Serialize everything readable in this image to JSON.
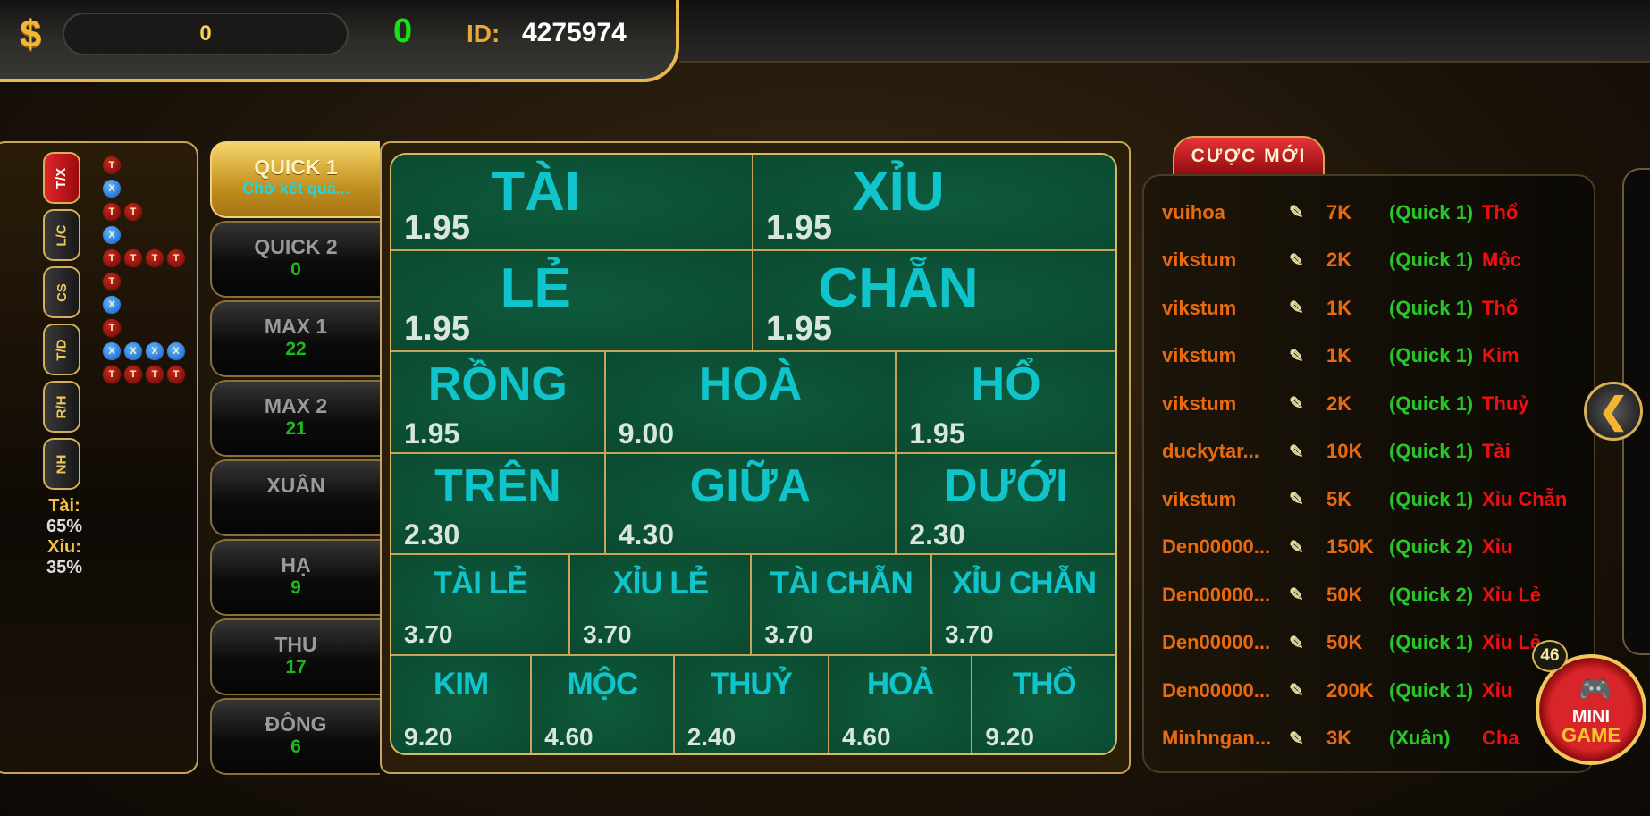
{
  "header": {
    "currency_icon": "dollar-icon",
    "balance": "0",
    "counter": "0",
    "id_label": "ID:",
    "id_value": "4275974"
  },
  "history": {
    "categories": [
      {
        "label": "T/X",
        "active": true
      },
      {
        "label": "L/C"
      },
      {
        "label": "CS"
      },
      {
        "label": "T/D"
      },
      {
        "label": "R/H"
      },
      {
        "label": "NH"
      }
    ],
    "rows": [
      [
        "T"
      ],
      [
        "X"
      ],
      [
        "T",
        "T"
      ],
      [
        "X"
      ],
      [
        "T",
        "T",
        "T",
        "T"
      ],
      [
        "T"
      ],
      [
        "X"
      ],
      [
        "T"
      ],
      [
        "X",
        "X",
        "X",
        "X"
      ],
      [
        "T",
        "T",
        "T",
        "T"
      ]
    ],
    "tai_label": "Tài:",
    "tai_pct": "65%",
    "xiu_label": "Xỉu:",
    "xiu_pct": "35%"
  },
  "tabs": [
    {
      "label": "QUICK 1",
      "value": "Chờ kết quả...",
      "active": true
    },
    {
      "label": "QUICK 2",
      "value": "0"
    },
    {
      "label": "MAX 1",
      "value": "22"
    },
    {
      "label": "MAX 2",
      "value": "21"
    },
    {
      "label": "XUÂN",
      "value": ""
    },
    {
      "label": "HẠ",
      "value": "9"
    },
    {
      "label": "THU",
      "value": "17"
    },
    {
      "label": "ĐÔNG",
      "value": "6"
    }
  ],
  "board": [
    [
      {
        "label": "TÀI",
        "odds": "1.95"
      },
      {
        "label": "XỈU",
        "odds": "1.95"
      }
    ],
    [
      {
        "label": "LẺ",
        "odds": "1.95"
      },
      {
        "label": "CHẴN",
        "odds": "1.95"
      }
    ],
    [
      {
        "label": "RỒNG",
        "odds": "1.95"
      },
      {
        "label": "HOÀ",
        "odds": "9.00"
      },
      {
        "label": "HỔ",
        "odds": "1.95"
      }
    ],
    [
      {
        "label": "TRÊN",
        "odds": "2.30"
      },
      {
        "label": "GIỮA",
        "odds": "4.30"
      },
      {
        "label": "DƯỚI",
        "odds": "2.30"
      }
    ],
    [
      {
        "label": "TÀI LẺ",
        "odds": "3.70"
      },
      {
        "label": "XỈU LẺ",
        "odds": "3.70"
      },
      {
        "label": "TÀI CHẴN",
        "odds": "3.70"
      },
      {
        "label": "XỈU CHẴN",
        "odds": "3.70"
      }
    ],
    [
      {
        "label": "KIM",
        "odds": "9.20"
      },
      {
        "label": "MỘC",
        "odds": "4.60"
      },
      {
        "label": "THUỶ",
        "odds": "2.40"
      },
      {
        "label": "HOẢ",
        "odds": "4.60"
      },
      {
        "label": "THỔ",
        "odds": "9.20"
      }
    ]
  ],
  "feed": {
    "title": "CƯỢC MỚI",
    "rows": [
      {
        "user": "vuihoa",
        "amount": "7K",
        "room": "(Quick 1)",
        "bet": "Thổ"
      },
      {
        "user": "vikstum",
        "amount": "2K",
        "room": "(Quick 1)",
        "bet": "Mộc"
      },
      {
        "user": "vikstum",
        "amount": "1K",
        "room": "(Quick 1)",
        "bet": "Thổ"
      },
      {
        "user": "vikstum",
        "amount": "1K",
        "room": "(Quick 1)",
        "bet": "Kim"
      },
      {
        "user": "vikstum",
        "amount": "2K",
        "room": "(Quick 1)",
        "bet": "Thuỷ"
      },
      {
        "user": "duckytar...",
        "amount": "10K",
        "room": "(Quick 1)",
        "bet": "Tài"
      },
      {
        "user": "vikstum",
        "amount": "5K",
        "room": "(Quick 1)",
        "bet": "Xỉu Chẵn"
      },
      {
        "user": "Den00000...",
        "amount": "150K",
        "room": "(Quick 2)",
        "bet": "Xỉu"
      },
      {
        "user": "Den00000...",
        "amount": "50K",
        "room": "(Quick 2)",
        "bet": "Xỉu Lẻ"
      },
      {
        "user": "Den00000...",
        "amount": "50K",
        "room": "(Quick 1)",
        "bet": "Xỉu Lẻ"
      },
      {
        "user": "Den00000...",
        "amount": "200K",
        "room": "(Quick 1)",
        "bet": "Xỉu"
      },
      {
        "user": "Minhngan...",
        "amount": "3K",
        "room": "(Xuân)",
        "bet": "Cha"
      }
    ]
  },
  "minigame": {
    "badge": "46",
    "line1": "MINI",
    "line2": "GAME"
  }
}
